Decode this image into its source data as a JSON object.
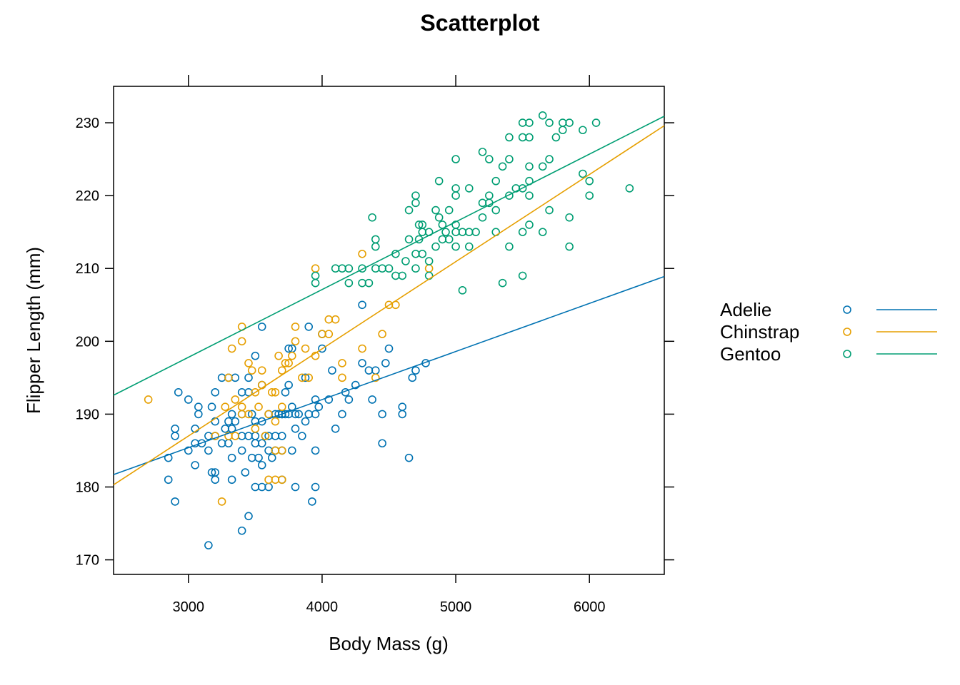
{
  "chart_data": {
    "type": "scatter",
    "title": "Scatterplot",
    "xlabel": "Body Mass (g)",
    "ylabel": "Flipper Length (mm)",
    "xlim": [
      2440,
      6560
    ],
    "ylim": [
      168,
      235
    ],
    "x_ticks": [
      3000,
      4000,
      5000,
      6000
    ],
    "y_ticks": [
      170,
      180,
      190,
      200,
      210,
      220,
      230
    ],
    "grid": false,
    "legend_position": "right",
    "series": [
      {
        "name": "Adelie",
        "color": "#0072B2",
        "fit": {
          "x": [
            2440,
            6560
          ],
          "y": [
            181.7,
            208.9
          ]
        },
        "points": [
          [
            2850,
            181
          ],
          [
            2850,
            184
          ],
          [
            2900,
            178
          ],
          [
            2900,
            187
          ],
          [
            2900,
            188
          ],
          [
            2925,
            193
          ],
          [
            3000,
            185
          ],
          [
            3000,
            192
          ],
          [
            3050,
            183
          ],
          [
            3050,
            186
          ],
          [
            3050,
            188
          ],
          [
            3075,
            190
          ],
          [
            3075,
            191
          ],
          [
            3100,
            186
          ],
          [
            3150,
            172
          ],
          [
            3150,
            185
          ],
          [
            3150,
            187
          ],
          [
            3175,
            182
          ],
          [
            3175,
            191
          ],
          [
            3200,
            181
          ],
          [
            3200,
            182
          ],
          [
            3200,
            187
          ],
          [
            3200,
            189
          ],
          [
            3200,
            193
          ],
          [
            3250,
            186
          ],
          [
            3250,
            195
          ],
          [
            3275,
            188
          ],
          [
            3300,
            186
          ],
          [
            3300,
            189
          ],
          [
            3300,
            195
          ],
          [
            3325,
            181
          ],
          [
            3325,
            184
          ],
          [
            3325,
            188
          ],
          [
            3325,
            190
          ],
          [
            3350,
            189
          ],
          [
            3350,
            195
          ],
          [
            3400,
            174
          ],
          [
            3400,
            185
          ],
          [
            3400,
            187
          ],
          [
            3400,
            190
          ],
          [
            3400,
            193
          ],
          [
            3425,
            182
          ],
          [
            3450,
            176
          ],
          [
            3450,
            187
          ],
          [
            3450,
            193
          ],
          [
            3450,
            195
          ],
          [
            3475,
            184
          ],
          [
            3475,
            190
          ],
          [
            3500,
            180
          ],
          [
            3500,
            186
          ],
          [
            3500,
            187
          ],
          [
            3500,
            189
          ],
          [
            3500,
            198
          ],
          [
            3525,
            184
          ],
          [
            3550,
            180
          ],
          [
            3550,
            183
          ],
          [
            3550,
            186
          ],
          [
            3550,
            189
          ],
          [
            3550,
            194
          ],
          [
            3550,
            202
          ],
          [
            3575,
            187
          ],
          [
            3600,
            180
          ],
          [
            3600,
            185
          ],
          [
            3600,
            187
          ],
          [
            3600,
            190
          ],
          [
            3625,
            184
          ],
          [
            3650,
            185
          ],
          [
            3650,
            187
          ],
          [
            3650,
            190
          ],
          [
            3675,
            190
          ],
          [
            3700,
            181
          ],
          [
            3700,
            185
          ],
          [
            3700,
            187
          ],
          [
            3700,
            190
          ],
          [
            3700,
            190
          ],
          [
            3725,
            190
          ],
          [
            3725,
            193
          ],
          [
            3750,
            190
          ],
          [
            3750,
            194
          ],
          [
            3750,
            199
          ],
          [
            3775,
            185
          ],
          [
            3775,
            191
          ],
          [
            3775,
            199
          ],
          [
            3800,
            180
          ],
          [
            3800,
            188
          ],
          [
            3800,
            190
          ],
          [
            3825,
            190
          ],
          [
            3850,
            187
          ],
          [
            3875,
            189
          ],
          [
            3875,
            195
          ],
          [
            3900,
            190
          ],
          [
            3900,
            202
          ],
          [
            3925,
            178
          ],
          [
            3950,
            180
          ],
          [
            3950,
            185
          ],
          [
            3950,
            190
          ],
          [
            3950,
            192
          ],
          [
            3975,
            191
          ],
          [
            4000,
            199
          ],
          [
            4000,
            201
          ],
          [
            4050,
            192
          ],
          [
            4075,
            196
          ],
          [
            4100,
            188
          ],
          [
            4150,
            190
          ],
          [
            4175,
            193
          ],
          [
            4200,
            192
          ],
          [
            4250,
            194
          ],
          [
            4300,
            197
          ],
          [
            4300,
            205
          ],
          [
            4350,
            196
          ],
          [
            4375,
            192
          ],
          [
            4400,
            196
          ],
          [
            4450,
            186
          ],
          [
            4450,
            190
          ],
          [
            4475,
            197
          ],
          [
            4500,
            199
          ],
          [
            4600,
            190
          ],
          [
            4600,
            191
          ],
          [
            4650,
            184
          ],
          [
            4675,
            195
          ],
          [
            4700,
            196
          ],
          [
            4775,
            197
          ]
        ]
      },
      {
        "name": "Chinstrap",
        "color": "#E69F00",
        "fit": {
          "x": [
            2440,
            6560
          ],
          "y": [
            180.3,
            229.6
          ]
        },
        "points": [
          [
            2700,
            192
          ],
          [
            3200,
            187
          ],
          [
            3250,
            178
          ],
          [
            3275,
            191
          ],
          [
            3300,
            187
          ],
          [
            3300,
            195
          ],
          [
            3325,
            199
          ],
          [
            3350,
            187
          ],
          [
            3350,
            192
          ],
          [
            3400,
            190
          ],
          [
            3400,
            191
          ],
          [
            3400,
            200
          ],
          [
            3400,
            202
          ],
          [
            3450,
            190
          ],
          [
            3450,
            197
          ],
          [
            3475,
            196
          ],
          [
            3500,
            188
          ],
          [
            3500,
            193
          ],
          [
            3525,
            191
          ],
          [
            3550,
            194
          ],
          [
            3550,
            196
          ],
          [
            3575,
            187
          ],
          [
            3600,
            181
          ],
          [
            3600,
            190
          ],
          [
            3625,
            193
          ],
          [
            3650,
            181
          ],
          [
            3650,
            185
          ],
          [
            3650,
            189
          ],
          [
            3650,
            193
          ],
          [
            3675,
            198
          ],
          [
            3700,
            181
          ],
          [
            3700,
            185
          ],
          [
            3700,
            191
          ],
          [
            3700,
            196
          ],
          [
            3725,
            197
          ],
          [
            3750,
            197
          ],
          [
            3775,
            198
          ],
          [
            3800,
            200
          ],
          [
            3800,
            202
          ],
          [
            3850,
            195
          ],
          [
            3875,
            199
          ],
          [
            3900,
            195
          ],
          [
            3950,
            198
          ],
          [
            3950,
            210
          ],
          [
            4000,
            201
          ],
          [
            4050,
            201
          ],
          [
            4050,
            203
          ],
          [
            4100,
            203
          ],
          [
            4150,
            195
          ],
          [
            4150,
            197
          ],
          [
            4300,
            199
          ],
          [
            4300,
            212
          ],
          [
            4400,
            195
          ],
          [
            4450,
            201
          ],
          [
            4500,
            205
          ],
          [
            4550,
            205
          ],
          [
            4800,
            210
          ]
        ]
      },
      {
        "name": "Gentoo",
        "color": "#009E73",
        "fit": {
          "x": [
            2440,
            6560
          ],
          "y": [
            192.6,
            230.9
          ]
        },
        "points": [
          [
            3950,
            208
          ],
          [
            3950,
            209
          ],
          [
            4100,
            210
          ],
          [
            4150,
            210
          ],
          [
            4200,
            208
          ],
          [
            4200,
            210
          ],
          [
            4300,
            208
          ],
          [
            4300,
            210
          ],
          [
            4350,
            208
          ],
          [
            4375,
            217
          ],
          [
            4400,
            210
          ],
          [
            4400,
            213
          ],
          [
            4400,
            214
          ],
          [
            4450,
            210
          ],
          [
            4500,
            210
          ],
          [
            4550,
            209
          ],
          [
            4550,
            212
          ],
          [
            4600,
            209
          ],
          [
            4625,
            211
          ],
          [
            4650,
            214
          ],
          [
            4650,
            218
          ],
          [
            4700,
            210
          ],
          [
            4700,
            212
          ],
          [
            4700,
            219
          ],
          [
            4700,
            220
          ],
          [
            4725,
            214
          ],
          [
            4725,
            216
          ],
          [
            4750,
            212
          ],
          [
            4750,
            215
          ],
          [
            4750,
            216
          ],
          [
            4800,
            209
          ],
          [
            4800,
            211
          ],
          [
            4800,
            215
          ],
          [
            4850,
            213
          ],
          [
            4850,
            218
          ],
          [
            4875,
            217
          ],
          [
            4875,
            222
          ],
          [
            4900,
            214
          ],
          [
            4900,
            216
          ],
          [
            4925,
            215
          ],
          [
            4950,
            214
          ],
          [
            4950,
            218
          ],
          [
            5000,
            213
          ],
          [
            5000,
            215
          ],
          [
            5000,
            216
          ],
          [
            5000,
            220
          ],
          [
            5000,
            221
          ],
          [
            5000,
            225
          ],
          [
            5050,
            207
          ],
          [
            5050,
            215
          ],
          [
            5100,
            213
          ],
          [
            5100,
            215
          ],
          [
            5100,
            221
          ],
          [
            5150,
            215
          ],
          [
            5200,
            217
          ],
          [
            5200,
            219
          ],
          [
            5200,
            226
          ],
          [
            5250,
            219
          ],
          [
            5250,
            220
          ],
          [
            5250,
            225
          ],
          [
            5300,
            215
          ],
          [
            5300,
            218
          ],
          [
            5300,
            222
          ],
          [
            5350,
            224
          ],
          [
            5350,
            208
          ],
          [
            5400,
            213
          ],
          [
            5400,
            220
          ],
          [
            5400,
            225
          ],
          [
            5400,
            228
          ],
          [
            5450,
            221
          ],
          [
            5500,
            209
          ],
          [
            5500,
            215
          ],
          [
            5500,
            221
          ],
          [
            5500,
            228
          ],
          [
            5500,
            230
          ],
          [
            5550,
            216
          ],
          [
            5550,
            220
          ],
          [
            5550,
            222
          ],
          [
            5550,
            224
          ],
          [
            5550,
            228
          ],
          [
            5550,
            230
          ],
          [
            5650,
            215
          ],
          [
            5650,
            224
          ],
          [
            5650,
            231
          ],
          [
            5700,
            218
          ],
          [
            5700,
            225
          ],
          [
            5700,
            230
          ],
          [
            5750,
            228
          ],
          [
            5800,
            229
          ],
          [
            5800,
            230
          ],
          [
            5850,
            213
          ],
          [
            5850,
            217
          ],
          [
            5850,
            230
          ],
          [
            5950,
            223
          ],
          [
            5950,
            229
          ],
          [
            6000,
            220
          ],
          [
            6000,
            222
          ],
          [
            6050,
            230
          ],
          [
            6300,
            221
          ]
        ]
      }
    ]
  }
}
